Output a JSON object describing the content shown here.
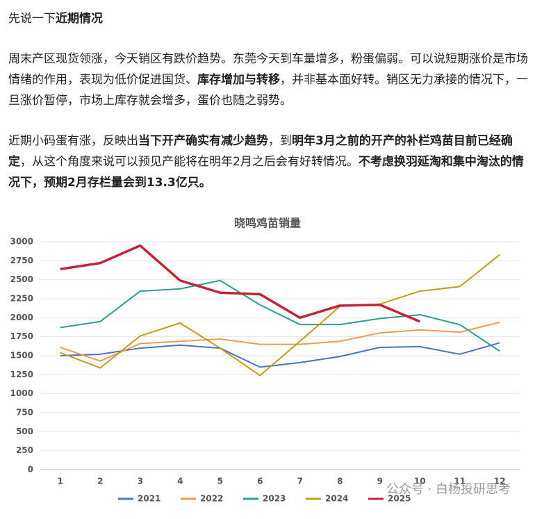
{
  "paragraphs": [
    [
      {
        "text": "先说一下",
        "bold": false
      },
      {
        "text": "近期情况",
        "bold": true
      }
    ],
    [
      {
        "text": "周末产区现货领涨，今天销区有跌价趋势。东莞今天到车量增多，粉蛋偏弱。可以说短期涨价是市场情绪的作用，表现为低价促进国货、",
        "bold": false
      },
      {
        "text": "库存增加与转移",
        "bold": true
      },
      {
        "text": "，并非基本面好转。销区无力承接的情况下，一旦涨价暂停，市场上库存就会增多，蛋价也随之弱势。",
        "bold": false
      }
    ],
    [
      {
        "text": "近期小码蛋有涨，反映出",
        "bold": false
      },
      {
        "text": "当下开产确实有减少趋势",
        "bold": true
      },
      {
        "text": "，到",
        "bold": false
      },
      {
        "text": "明年3月之前的开产的补栏鸡苗目前已经确定",
        "bold": true
      },
      {
        "text": "，从这个角度来说可以预见产能将在明年2月之后会有好转情况。",
        "bold": false
      },
      {
        "text": "不考虑换羽延淘和集中淘汰的情况下，预期2月存栏量会到13.3亿只。",
        "bold": true
      }
    ]
  ],
  "chart_data": {
    "type": "line",
    "title": "晓鸣鸡苗销量",
    "categories": [
      "1",
      "2",
      "3",
      "4",
      "5",
      "6",
      "7",
      "8",
      "9",
      "10",
      "11",
      "12"
    ],
    "series": [
      {
        "name": "2021",
        "color": "#4a72c0",
        "values": [
          1500,
          1520,
          1600,
          1640,
          1600,
          1350,
          1410,
          1490,
          1610,
          1620,
          1520,
          1670
        ]
      },
      {
        "name": "2022",
        "color": "#ee9a4f",
        "values": [
          1610,
          1430,
          1660,
          1690,
          1720,
          1650,
          1650,
          1690,
          1800,
          1840,
          1810,
          1940
        ]
      },
      {
        "name": "2023",
        "color": "#2e9c90",
        "values": [
          1870,
          1950,
          2350,
          2380,
          2490,
          2170,
          1910,
          1910,
          1990,
          2040,
          1910,
          1560
        ]
      },
      {
        "name": "2024",
        "color": "#bf9c19",
        "values": [
          1540,
          1340,
          1760,
          1930,
          1600,
          1240,
          1690,
          2150,
          2180,
          2350,
          2410,
          2830
        ]
      },
      {
        "name": "2025",
        "color": "#c0243b",
        "values": [
          2640,
          2720,
          2950,
          2490,
          2330,
          2310,
          2000,
          2160,
          2170,
          1950,
          null,
          null
        ]
      }
    ],
    "ylim": [
      0,
      3000
    ],
    "yticks": [
      0,
      250,
      500,
      750,
      1000,
      1250,
      1500,
      1750,
      2000,
      2250,
      2500,
      2750,
      3000
    ],
    "grid": true,
    "legend": "bottom"
  },
  "watermark": "公众号 · 白杨投研思考"
}
